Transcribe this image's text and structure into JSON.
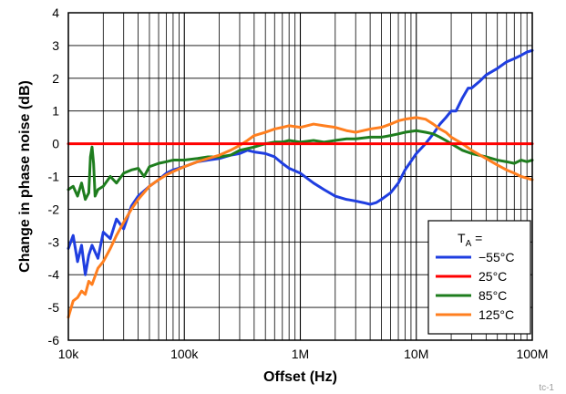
{
  "chart_data": {
    "type": "line",
    "title": "",
    "xlabel": "Offset (Hz)",
    "ylabel": "Change in phase noise (dB)",
    "x_scale": "log",
    "xlim": [
      10000,
      100000000
    ],
    "ylim": [
      -6,
      4
    ],
    "grid": true,
    "legend_position": "bottom-right",
    "x_ticks": [
      {
        "value": 10000,
        "label": "10k"
      },
      {
        "value": 100000,
        "label": "100k"
      },
      {
        "value": 1000000,
        "label": "1M"
      },
      {
        "value": 10000000,
        "label": "10M"
      },
      {
        "value": 100000000,
        "label": "100M"
      }
    ],
    "y_ticks": [
      {
        "value": -6,
        "label": "-6"
      },
      {
        "value": -5,
        "label": "-5"
      },
      {
        "value": -4,
        "label": "-4"
      },
      {
        "value": -3,
        "label": "-3"
      },
      {
        "value": -2,
        "label": "-2"
      },
      {
        "value": -1,
        "label": "-1"
      },
      {
        "value": 0,
        "label": "0"
      },
      {
        "value": 1,
        "label": "1"
      },
      {
        "value": 2,
        "label": "2"
      },
      {
        "value": 3,
        "label": "3"
      },
      {
        "value": 4,
        "label": "4"
      }
    ],
    "legend_title": "T",
    "legend_title_sub": "A",
    "legend_title_suffix": " =",
    "series": [
      {
        "name": "−55°C",
        "color": "#1f3ee0",
        "x": [
          10000,
          11000,
          12000,
          13000,
          14000,
          15000,
          16000,
          18000,
          20000,
          23000,
          26000,
          30000,
          35000,
          40000,
          50000,
          60000,
          70000,
          80000,
          100000,
          130000,
          160000,
          200000,
          250000,
          300000,
          350000,
          400000,
          500000,
          600000,
          700000,
          800000,
          1000000,
          1300000,
          1600000,
          2000000,
          2500000,
          3000000,
          3500000,
          4000000,
          4500000,
          5000000,
          6000000,
          7000000,
          8000000,
          10000000,
          12000000,
          14000000,
          16000000,
          18000000,
          20000000,
          22000000,
          25000000,
          28000000,
          30000000,
          35000000,
          40000000,
          50000000,
          60000000,
          70000000,
          80000000,
          90000000,
          100000000
        ],
        "y": [
          -3.2,
          -2.8,
          -3.6,
          -3.1,
          -4.0,
          -3.4,
          -3.1,
          -3.5,
          -2.7,
          -2.9,
          -2.3,
          -2.6,
          -1.9,
          -1.6,
          -1.3,
          -1.1,
          -0.9,
          -0.8,
          -0.7,
          -0.55,
          -0.5,
          -0.45,
          -0.35,
          -0.3,
          -0.2,
          -0.25,
          -0.3,
          -0.4,
          -0.6,
          -0.75,
          -0.9,
          -1.2,
          -1.4,
          -1.6,
          -1.7,
          -1.75,
          -1.8,
          -1.85,
          -1.8,
          -1.7,
          -1.5,
          -1.2,
          -0.8,
          -0.3,
          0.0,
          0.3,
          0.6,
          0.8,
          1.0,
          1.0,
          1.4,
          1.7,
          1.7,
          1.9,
          2.1,
          2.3,
          2.5,
          2.6,
          2.7,
          2.8,
          2.85
        ]
      },
      {
        "name": "25°C",
        "color": "#ff0000",
        "x": [
          10000,
          100000000
        ],
        "y": [
          0,
          0
        ]
      },
      {
        "name": "85°C",
        "color": "#1e7d1e",
        "x": [
          10000,
          11000,
          12000,
          13000,
          14000,
          15000,
          15500,
          16000,
          16500,
          17000,
          18000,
          20000,
          23000,
          26000,
          30000,
          35000,
          40000,
          45000,
          50000,
          60000,
          70000,
          80000,
          100000,
          130000,
          160000,
          200000,
          250000,
          300000,
          400000,
          500000,
          600000,
          700000,
          800000,
          1000000,
          1300000,
          1600000,
          2000000,
          2500000,
          3000000,
          4000000,
          5000000,
          6000000,
          7000000,
          8000000,
          10000000,
          12000000,
          14000000,
          16000000,
          18000000,
          20000000,
          25000000,
          30000000,
          40000000,
          50000000,
          60000000,
          70000000,
          80000000,
          90000000,
          100000000
        ],
        "y": [
          -1.4,
          -1.3,
          -1.6,
          -1.2,
          -1.7,
          -1.5,
          -0.4,
          -0.1,
          -0.6,
          -1.6,
          -1.4,
          -1.3,
          -1.0,
          -1.2,
          -0.9,
          -0.8,
          -0.75,
          -1.0,
          -0.7,
          -0.6,
          -0.55,
          -0.5,
          -0.5,
          -0.45,
          -0.4,
          -0.4,
          -0.35,
          -0.2,
          -0.1,
          0.0,
          0.05,
          0.05,
          0.1,
          0.05,
          0.1,
          0.05,
          0.1,
          0.15,
          0.15,
          0.2,
          0.2,
          0.25,
          0.3,
          0.35,
          0.4,
          0.35,
          0.3,
          0.2,
          0.1,
          0.0,
          -0.2,
          -0.3,
          -0.4,
          -0.5,
          -0.55,
          -0.6,
          -0.5,
          -0.55,
          -0.5
        ]
      },
      {
        "name": "125°C",
        "color": "#ff7f1f",
        "x": [
          10000,
          11000,
          12000,
          13000,
          14000,
          15000,
          16000,
          18000,
          20000,
          23000,
          26000,
          30000,
          35000,
          40000,
          50000,
          60000,
          70000,
          80000,
          100000,
          130000,
          160000,
          200000,
          250000,
          300000,
          350000,
          400000,
          500000,
          600000,
          700000,
          800000,
          1000000,
          1300000,
          1600000,
          2000000,
          2500000,
          3000000,
          4000000,
          5000000,
          6000000,
          7000000,
          8000000,
          10000000,
          12000000,
          14000000,
          16000000,
          18000000,
          20000000,
          25000000,
          30000000,
          40000000,
          50000000,
          60000000,
          70000000,
          80000000,
          90000000,
          100000000
        ],
        "y": [
          -5.3,
          -4.8,
          -4.7,
          -4.5,
          -4.6,
          -4.2,
          -4.3,
          -3.8,
          -3.6,
          -3.2,
          -2.8,
          -2.4,
          -2.0,
          -1.7,
          -1.3,
          -1.1,
          -0.95,
          -0.85,
          -0.7,
          -0.55,
          -0.45,
          -0.35,
          -0.2,
          -0.05,
          0.1,
          0.25,
          0.35,
          0.45,
          0.5,
          0.55,
          0.5,
          0.6,
          0.55,
          0.5,
          0.4,
          0.35,
          0.45,
          0.5,
          0.6,
          0.7,
          0.75,
          0.8,
          0.75,
          0.6,
          0.45,
          0.35,
          0.2,
          0.0,
          -0.2,
          -0.45,
          -0.65,
          -0.8,
          -0.9,
          -1.0,
          -1.05,
          -1.1
        ]
      }
    ],
    "figure_id": "tc-1"
  }
}
